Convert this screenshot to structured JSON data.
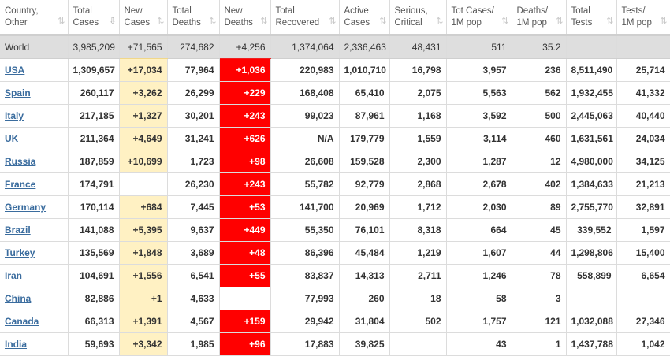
{
  "columns": [
    {
      "line1": "Country,",
      "line2": "Other",
      "sort": "⇅",
      "active": false
    },
    {
      "line1": "Total",
      "line2": "Cases",
      "sort": "⇩",
      "active": true
    },
    {
      "line1": "New",
      "line2": "Cases",
      "sort": "⇅",
      "active": false
    },
    {
      "line1": "Total",
      "line2": "Deaths",
      "sort": "⇅",
      "active": false
    },
    {
      "line1": "New",
      "line2": "Deaths",
      "sort": "⇅",
      "active": false
    },
    {
      "line1": "Total",
      "line2": "Recovered",
      "sort": "⇅",
      "active": false
    },
    {
      "line1": "Active",
      "line2": "Cases",
      "sort": "⇅",
      "active": false
    },
    {
      "line1": "Serious,",
      "line2": "Critical",
      "sort": "⇅",
      "active": false
    },
    {
      "line1": "Tot Cases/",
      "line2": "1M pop",
      "sort": "⇅",
      "active": false
    },
    {
      "line1": "Deaths/",
      "line2": "1M pop",
      "sort": "⇅",
      "active": false
    },
    {
      "line1": "Total",
      "line2": "Tests",
      "sort": "⇅",
      "active": false
    },
    {
      "line1": "Tests/",
      "line2": "1M pop",
      "sort": "⇅",
      "active": false
    }
  ],
  "world": [
    "World",
    "3,985,209",
    "+71,565",
    "274,682",
    "+4,256",
    "1,374,064",
    "2,336,463",
    "48,431",
    "511",
    "35.2",
    "",
    ""
  ],
  "rows": [
    [
      "USA",
      "1,309,657",
      "+17,034",
      "77,964",
      "+1,036",
      "220,983",
      "1,010,710",
      "16,798",
      "3,957",
      "236",
      "8,511,490",
      "25,714"
    ],
    [
      "Spain",
      "260,117",
      "+3,262",
      "26,299",
      "+229",
      "168,408",
      "65,410",
      "2,075",
      "5,563",
      "562",
      "1,932,455",
      "41,332"
    ],
    [
      "Italy",
      "217,185",
      "+1,327",
      "30,201",
      "+243",
      "99,023",
      "87,961",
      "1,168",
      "3,592",
      "500",
      "2,445,063",
      "40,440"
    ],
    [
      "UK",
      "211,364",
      "+4,649",
      "31,241",
      "+626",
      "N/A",
      "179,779",
      "1,559",
      "3,114",
      "460",
      "1,631,561",
      "24,034"
    ],
    [
      "Russia",
      "187,859",
      "+10,699",
      "1,723",
      "+98",
      "26,608",
      "159,528",
      "2,300",
      "1,287",
      "12",
      "4,980,000",
      "34,125"
    ],
    [
      "France",
      "174,791",
      "",
      "26,230",
      "+243",
      "55,782",
      "92,779",
      "2,868",
      "2,678",
      "402",
      "1,384,633",
      "21,213"
    ],
    [
      "Germany",
      "170,114",
      "+684",
      "7,445",
      "+53",
      "141,700",
      "20,969",
      "1,712",
      "2,030",
      "89",
      "2,755,770",
      "32,891"
    ],
    [
      "Brazil",
      "141,088",
      "+5,395",
      "9,637",
      "+449",
      "55,350",
      "76,101",
      "8,318",
      "664",
      "45",
      "339,552",
      "1,597"
    ],
    [
      "Turkey",
      "135,569",
      "+1,848",
      "3,689",
      "+48",
      "86,396",
      "45,484",
      "1,219",
      "1,607",
      "44",
      "1,298,806",
      "15,400"
    ],
    [
      "Iran",
      "104,691",
      "+1,556",
      "6,541",
      "+55",
      "83,837",
      "14,313",
      "2,711",
      "1,246",
      "78",
      "558,899",
      "6,654"
    ],
    [
      "China",
      "82,886",
      "+1",
      "4,633",
      "",
      "77,993",
      "260",
      "18",
      "58",
      "3",
      "",
      ""
    ],
    [
      "Canada",
      "66,313",
      "+1,391",
      "4,567",
      "+159",
      "29,942",
      "31,804",
      "502",
      "1,757",
      "121",
      "1,032,088",
      "27,346"
    ],
    [
      "India",
      "59,693",
      "+3,342",
      "1,985",
      "+96",
      "17,883",
      "39,825",
      "",
      "43",
      "1",
      "1,437,788",
      "1,042"
    ]
  ],
  "colors": {
    "new_cases_bg": "#fff1c3",
    "new_deaths_bg": "#ff0000",
    "world_row_bg": "#dedede",
    "link": "#3a6c9e"
  }
}
